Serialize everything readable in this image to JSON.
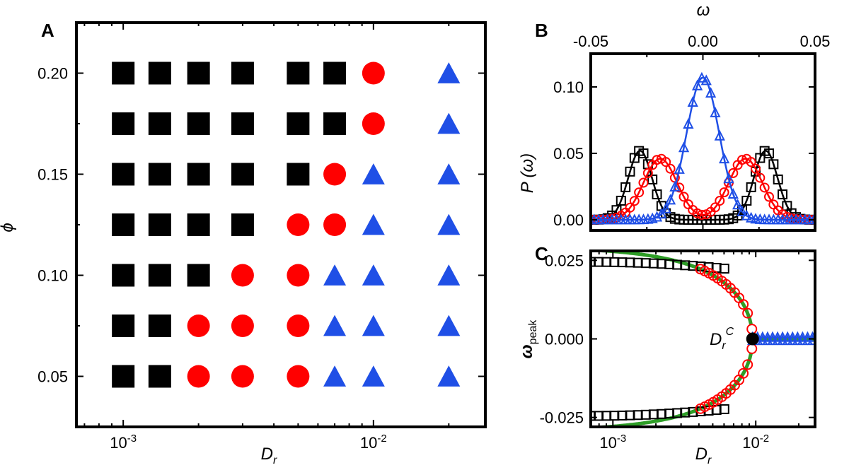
{
  "figure": {
    "panels": [
      "A",
      "B",
      "C"
    ]
  },
  "colors": {
    "black": "#000000",
    "red": "#ff0000",
    "blue": "#1f4fe6",
    "green": "#2e9e27"
  },
  "chart_data": [
    {
      "panel": "A",
      "type": "scatter",
      "xlabel_main": "D",
      "xlabel_sub": "r",
      "ylabel": "ϕ",
      "xscale": "log",
      "xlim": [
        0.00065,
        0.028
      ],
      "ylim": [
        0.025,
        0.225
      ],
      "xticks": [
        {
          "v": 0.001,
          "base": "10",
          "exp": "-3"
        },
        {
          "v": 0.01,
          "base": "10",
          "exp": "-2"
        }
      ],
      "yticks": [
        {
          "v": 0.05,
          "label": "0.05"
        },
        {
          "v": 0.1,
          "label": "0.10"
        },
        {
          "v": 0.15,
          "label": "0.15"
        },
        {
          "v": 0.2,
          "label": "0.20"
        }
      ],
      "x": [
        0.001,
        0.0014,
        0.002,
        0.003,
        0.005,
        0.007,
        0.01,
        0.02
      ],
      "rows": [
        {
          "phi": 0.2,
          "states": [
            "square",
            "square",
            "square",
            "square",
            "square",
            "square",
            "circle",
            "triangle"
          ]
        },
        {
          "phi": 0.175,
          "states": [
            "square",
            "square",
            "square",
            "square",
            "square",
            "square",
            "circle",
            "triangle"
          ]
        },
        {
          "phi": 0.15,
          "states": [
            "square",
            "square",
            "square",
            "square",
            "square",
            "circle",
            "triangle",
            "triangle"
          ]
        },
        {
          "phi": 0.125,
          "states": [
            "square",
            "square",
            "square",
            "square",
            "circle",
            "circle",
            "triangle",
            "triangle"
          ]
        },
        {
          "phi": 0.1,
          "states": [
            "square",
            "square",
            "square",
            "circle",
            "circle",
            "triangle",
            "triangle",
            "triangle"
          ]
        },
        {
          "phi": 0.075,
          "states": [
            "square",
            "square",
            "circle",
            "circle",
            "circle",
            "triangle",
            "triangle",
            "triangle"
          ]
        },
        {
          "phi": 0.05,
          "states": [
            "square",
            "square",
            "circle",
            "circle",
            "circle",
            "triangle",
            "triangle",
            "triangle"
          ]
        }
      ]
    },
    {
      "panel": "B",
      "type": "line",
      "xlabel": "ω",
      "ylabel": "P (ω)",
      "xlim": [
        -0.05,
        0.05
      ],
      "ylim": [
        -0.008,
        0.125
      ],
      "xticks": [
        "-0.05",
        "0.00",
        "0.05"
      ],
      "xtick_values": [
        -0.05,
        0.0,
        0.05
      ],
      "yticks": [
        "0.00",
        "0.05",
        "0.10"
      ],
      "ytick_values": [
        0.0,
        0.05,
        0.1
      ],
      "series": [
        {
          "marker": "square",
          "color": "#000000",
          "components": [
            [
              -0.028,
              0.0053,
              0.052
            ],
            [
              0.028,
              0.0053,
              0.052
            ]
          ]
        },
        {
          "marker": "circle",
          "color": "#ff0000",
          "components": [
            [
              -0.019,
              0.0075,
              0.046
            ],
            [
              0.019,
              0.0075,
              0.046
            ]
          ]
        },
        {
          "marker": "triangle",
          "color": "#1f4fe6",
          "components": [
            [
              0.0,
              0.0073,
              0.107
            ]
          ]
        }
      ]
    },
    {
      "panel": "C",
      "type": "line",
      "xlabel_main": "D",
      "xlabel_sub": "r",
      "ylabel_main": "ω",
      "ylabel_sub": "peak",
      "annotation_main": "D",
      "annotation_sub": "r",
      "annotation_sup": "C",
      "xscale": "log",
      "xlim": [
        0.0007,
        0.026
      ],
      "ylim": [
        -0.028,
        0.028
      ],
      "xticks": [
        {
          "v": 0.001,
          "base": "10",
          "exp": "-3"
        },
        {
          "v": 0.01,
          "base": "10",
          "exp": "-2"
        }
      ],
      "yticks": [
        "0.025",
        "0.000",
        "-0.025"
      ],
      "ytick_values": [
        0.025,
        0.0,
        -0.025
      ],
      "critical_point": [
        0.0095,
        0.0
      ],
      "series": [
        {
          "marker": "square",
          "color": "#000000",
          "x_range": [
            0.0007,
            0.0062
          ]
        },
        {
          "marker": "circle",
          "color": "#ff0000",
          "x_range": [
            0.0041,
            0.0094
          ]
        },
        {
          "marker": "triangle",
          "color": "#1f4fe6",
          "x_range": [
            0.0095,
            0.026
          ]
        },
        {
          "marker": "fit",
          "color": "#2e9e27"
        }
      ]
    }
  ]
}
